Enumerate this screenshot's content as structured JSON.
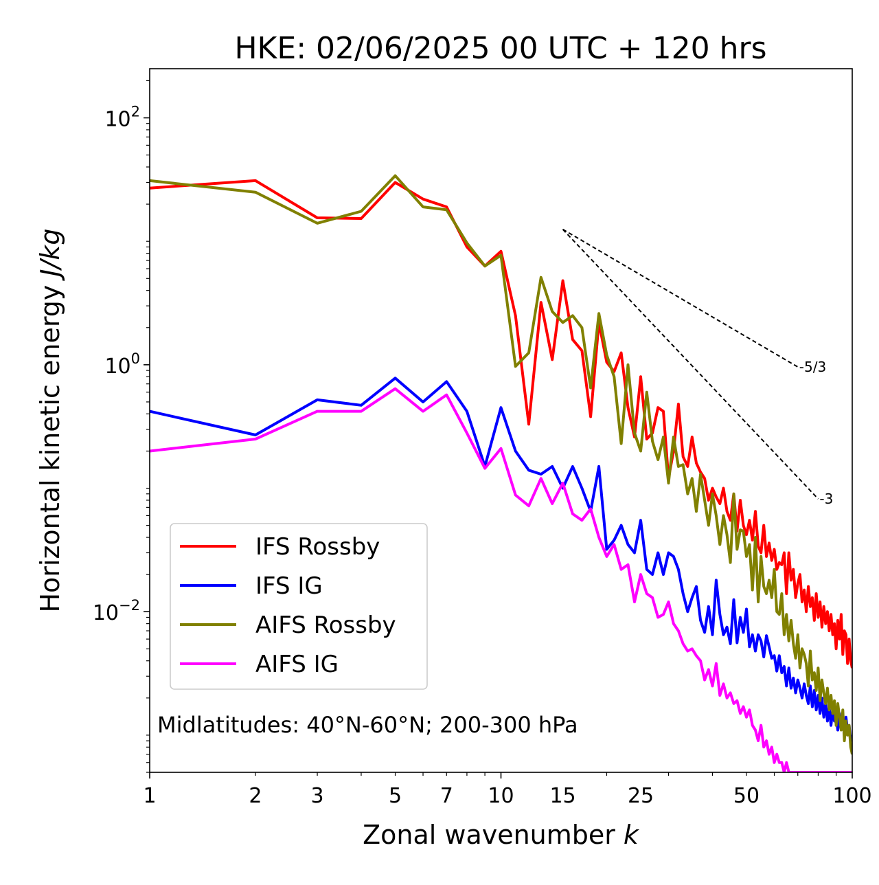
{
  "chart_data": {
    "type": "line",
    "title": "HKE: 02/06/2025 00 UTC + 120 hrs",
    "xlabel": "Zonal wavenumber",
    "xlabel_italic": "k",
    "ylabel": "Horizontal kinetic energy",
    "ylabel_italic": "J/kg",
    "xscale": "log",
    "yscale": "log",
    "xlim": [
      1,
      100
    ],
    "ylim": [
      0.0005,
      250
    ],
    "x_ticks": [
      1,
      2,
      3,
      5,
      7,
      10,
      15,
      25,
      50,
      100
    ],
    "x_tick_labels": [
      "1",
      "2",
      "3",
      "5",
      "7",
      "10",
      "15",
      "25",
      "50",
      "100"
    ],
    "y_ticks": [
      {
        "value": 100,
        "base": "10",
        "exp": "2"
      },
      {
        "value": 1,
        "base": "10",
        "exp": "0"
      },
      {
        "value": 0.01,
        "base": "10",
        "exp": "−2"
      }
    ],
    "grid": false,
    "legend_position": "lower-left",
    "annotation": "Midlatitudes: 40°N-60°N; 200-300 hPa",
    "reference_slopes": [
      {
        "label": "-5/3",
        "exponent": -1.6667,
        "x": [
          15,
          70
        ],
        "y": [
          12.5,
          0.96
        ]
      },
      {
        "label": "-3",
        "exponent": -3,
        "x": [
          15,
          80
        ],
        "y": [
          12.5,
          0.082
        ]
      }
    ],
    "series": [
      {
        "name": "IFS Rossby",
        "color": "#ff0000",
        "x": [
          1,
          2,
          3,
          4,
          5,
          6,
          7,
          8,
          9,
          10,
          11,
          12,
          13,
          14,
          15,
          16,
          17,
          18,
          19,
          20,
          21,
          22,
          23,
          24,
          25,
          26,
          27,
          28,
          29,
          30,
          31,
          32,
          33,
          34,
          35,
          36,
          37,
          38,
          39,
          40,
          41,
          42,
          43,
          44,
          45,
          46,
          47,
          48,
          49,
          50,
          51,
          52,
          53,
          54,
          55,
          56,
          57,
          58,
          59,
          60,
          61,
          62,
          63,
          64,
          65,
          66,
          67,
          68,
          69,
          70,
          71,
          72,
          73,
          74,
          75,
          76,
          77,
          78,
          79,
          80,
          81,
          82,
          83,
          84,
          85,
          86,
          87,
          88,
          89,
          90,
          91,
          92,
          93,
          94,
          95,
          96,
          97,
          98,
          99,
          100
        ],
        "y": [
          27,
          31,
          15.5,
          15.3,
          30,
          22,
          19,
          9,
          6.3,
          8.3,
          2.5,
          0.33,
          3.2,
          1.1,
          4.8,
          1.6,
          1.3,
          0.38,
          2.2,
          1.05,
          0.88,
          1.25,
          0.45,
          0.26,
          0.8,
          0.25,
          0.28,
          0.45,
          0.42,
          0.12,
          0.2,
          0.48,
          0.18,
          0.15,
          0.26,
          0.16,
          0.135,
          0.12,
          0.08,
          0.1,
          0.085,
          0.075,
          0.1,
          0.065,
          0.055,
          0.09,
          0.045,
          0.08,
          0.05,
          0.042,
          0.055,
          0.038,
          0.065,
          0.034,
          0.03,
          0.05,
          0.028,
          0.036,
          0.026,
          0.032,
          0.022,
          0.025,
          0.024,
          0.03,
          0.014,
          0.03,
          0.018,
          0.022,
          0.013,
          0.017,
          0.02,
          0.012,
          0.015,
          0.01,
          0.016,
          0.011,
          0.013,
          0.0085,
          0.014,
          0.009,
          0.012,
          0.0075,
          0.011,
          0.008,
          0.01,
          0.007,
          0.0095,
          0.0065,
          0.008,
          0.005,
          0.0085,
          0.006,
          0.0095,
          0.0045,
          0.007,
          0.0065,
          0.0038,
          0.006,
          0.004,
          0.0035
        ]
      },
      {
        "name": "IFS IG",
        "color": "#0000ff",
        "x": [
          1,
          2,
          3,
          4,
          5,
          6,
          7,
          8,
          9,
          10,
          11,
          12,
          13,
          14,
          15,
          16,
          17,
          18,
          19,
          20,
          21,
          22,
          23,
          24,
          25,
          26,
          27,
          28,
          29,
          30,
          31,
          32,
          33,
          34,
          35,
          36,
          37,
          38,
          39,
          40,
          41,
          42,
          43,
          44,
          45,
          46,
          47,
          48,
          49,
          50,
          51,
          52,
          53,
          54,
          55,
          56,
          57,
          58,
          59,
          60,
          61,
          62,
          63,
          64,
          65,
          66,
          67,
          68,
          69,
          70,
          71,
          72,
          73,
          74,
          75,
          76,
          77,
          78,
          79,
          80,
          81,
          82,
          83,
          84,
          85,
          86,
          87,
          88,
          89,
          90,
          91,
          92,
          93,
          94,
          95,
          96,
          97,
          98,
          99,
          100
        ],
        "y": [
          0.42,
          0.27,
          0.52,
          0.47,
          0.78,
          0.5,
          0.73,
          0.42,
          0.15,
          0.45,
          0.2,
          0.14,
          0.13,
          0.15,
          0.1,
          0.15,
          0.1,
          0.065,
          0.15,
          0.032,
          0.038,
          0.05,
          0.035,
          0.03,
          0.055,
          0.022,
          0.02,
          0.03,
          0.02,
          0.03,
          0.028,
          0.022,
          0.014,
          0.01,
          0.013,
          0.016,
          0.0085,
          0.0068,
          0.011,
          0.0065,
          0.018,
          0.0095,
          0.0065,
          0.0075,
          0.0055,
          0.0125,
          0.0056,
          0.009,
          0.0068,
          0.0105,
          0.0052,
          0.0065,
          0.0048,
          0.0065,
          0.0058,
          0.0043,
          0.0064,
          0.0052,
          0.0042,
          0.0044,
          0.0033,
          0.0044,
          0.0032,
          0.0036,
          0.0025,
          0.0035,
          0.0024,
          0.0029,
          0.0022,
          0.0028,
          0.0024,
          0.002,
          0.0026,
          0.0021,
          0.0018,
          0.0025,
          0.0017,
          0.0023,
          0.0016,
          0.0021,
          0.0015,
          0.002,
          0.0014,
          0.0018,
          0.0013,
          0.0017,
          0.0012,
          0.0016,
          0.0013,
          0.0014,
          0.0011,
          0.0015,
          0.0012,
          0.0013,
          0.001,
          0.0014,
          0.0011,
          0.0012,
          0.0009,
          0.001
        ]
      },
      {
        "name": "AIFS Rossby",
        "color": "#808000",
        "x": [
          1,
          2,
          3,
          4,
          5,
          6,
          7,
          8,
          9,
          10,
          11,
          12,
          13,
          14,
          15,
          16,
          17,
          18,
          19,
          20,
          21,
          22,
          23,
          24,
          25,
          26,
          27,
          28,
          29,
          30,
          31,
          32,
          33,
          34,
          35,
          36,
          37,
          38,
          39,
          40,
          41,
          42,
          43,
          44,
          45,
          46,
          47,
          48,
          49,
          50,
          51,
          52,
          53,
          54,
          55,
          56,
          57,
          58,
          59,
          60,
          61,
          62,
          63,
          64,
          65,
          66,
          67,
          68,
          69,
          70,
          71,
          72,
          73,
          74,
          75,
          76,
          77,
          78,
          79,
          80,
          81,
          82,
          83,
          84,
          85,
          86,
          87,
          88,
          89,
          90,
          91,
          92,
          93,
          94,
          95,
          96,
          97,
          98,
          99,
          100
        ],
        "y": [
          31,
          25,
          14,
          17.5,
          34,
          19,
          18,
          9.7,
          6.3,
          7.7,
          0.97,
          1.25,
          5.1,
          2.7,
          2.2,
          2.5,
          2.0,
          0.65,
          2.6,
          1.2,
          0.8,
          0.23,
          1.0,
          0.28,
          0.2,
          0.6,
          0.24,
          0.17,
          0.26,
          0.11,
          0.26,
          0.15,
          0.155,
          0.09,
          0.12,
          0.065,
          0.13,
          0.08,
          0.05,
          0.09,
          0.06,
          0.035,
          0.06,
          0.042,
          0.025,
          0.09,
          0.032,
          0.046,
          0.045,
          0.028,
          0.035,
          0.015,
          0.04,
          0.012,
          0.028,
          0.016,
          0.014,
          0.018,
          0.013,
          0.022,
          0.01,
          0.0095,
          0.014,
          0.0065,
          0.0095,
          0.0058,
          0.0085,
          0.0055,
          0.0042,
          0.0065,
          0.0035,
          0.005,
          0.0045,
          0.0038,
          0.0025,
          0.0048,
          0.0028,
          0.0032,
          0.0023,
          0.0035,
          0.0019,
          0.0028,
          0.0022,
          0.0018,
          0.0024,
          0.0016,
          0.0021,
          0.0015,
          0.0019,
          0.0012,
          0.0018,
          0.0014,
          0.0011,
          0.0016,
          0.0009,
          0.0013,
          0.001,
          0.0012,
          0.0008,
          0.0007
        ]
      },
      {
        "name": "AIFS IG",
        "color": "#ff00ff",
        "x": [
          1,
          2,
          3,
          4,
          5,
          6,
          7,
          8,
          9,
          10,
          11,
          12,
          13,
          14,
          15,
          16,
          17,
          18,
          19,
          20,
          21,
          22,
          23,
          24,
          25,
          26,
          27,
          28,
          29,
          30,
          31,
          32,
          33,
          34,
          35,
          36,
          37,
          38,
          39,
          40,
          41,
          42,
          43,
          44,
          45,
          46,
          47,
          48,
          49,
          50,
          51,
          52,
          53,
          54,
          55,
          56,
          57,
          58,
          59,
          60,
          61,
          62,
          63,
          64,
          65,
          66,
          67,
          68,
          69,
          70,
          71,
          72,
          73,
          74,
          75,
          76,
          77,
          78,
          79,
          80,
          81,
          82,
          83,
          84,
          85,
          86,
          87,
          88,
          89,
          90,
          91,
          92,
          93,
          94,
          95,
          96,
          97,
          98,
          99,
          100
        ],
        "y": [
          0.2,
          0.25,
          0.42,
          0.42,
          0.64,
          0.42,
          0.57,
          0.28,
          0.145,
          0.21,
          0.088,
          0.072,
          0.12,
          0.075,
          0.11,
          0.062,
          0.055,
          0.068,
          0.04,
          0.028,
          0.035,
          0.022,
          0.024,
          0.012,
          0.02,
          0.014,
          0.013,
          0.009,
          0.0095,
          0.012,
          0.008,
          0.007,
          0.0055,
          0.0048,
          0.005,
          0.0044,
          0.004,
          0.0028,
          0.0034,
          0.0025,
          0.0038,
          0.0021,
          0.0026,
          0.002,
          0.0022,
          0.0018,
          0.0019,
          0.0015,
          0.0017,
          0.0014,
          0.0016,
          0.0012,
          0.0011,
          0.0009,
          0.0012,
          0.0008,
          0.0009,
          0.0007,
          0.0008,
          0.0006,
          0.0007,
          0.0006,
          0.0006,
          0.0005,
          0.0006,
          0.0005,
          0.0005,
          0.0005,
          0.0005,
          0.0005,
          0.0005,
          0.0005,
          0.0005,
          0.0005,
          0.0005,
          0.0005,
          0.0005,
          0.0005,
          0.0005,
          0.0005,
          0.0005,
          0.0005,
          0.0005,
          0.0005,
          0.0005,
          0.0005,
          0.0005,
          0.0005,
          0.0005,
          0.0005,
          0.0005,
          0.0005,
          0.0005,
          0.0005,
          0.0005,
          0.0005,
          0.0005,
          0.0005,
          0.0005,
          0.0005
        ]
      }
    ]
  }
}
